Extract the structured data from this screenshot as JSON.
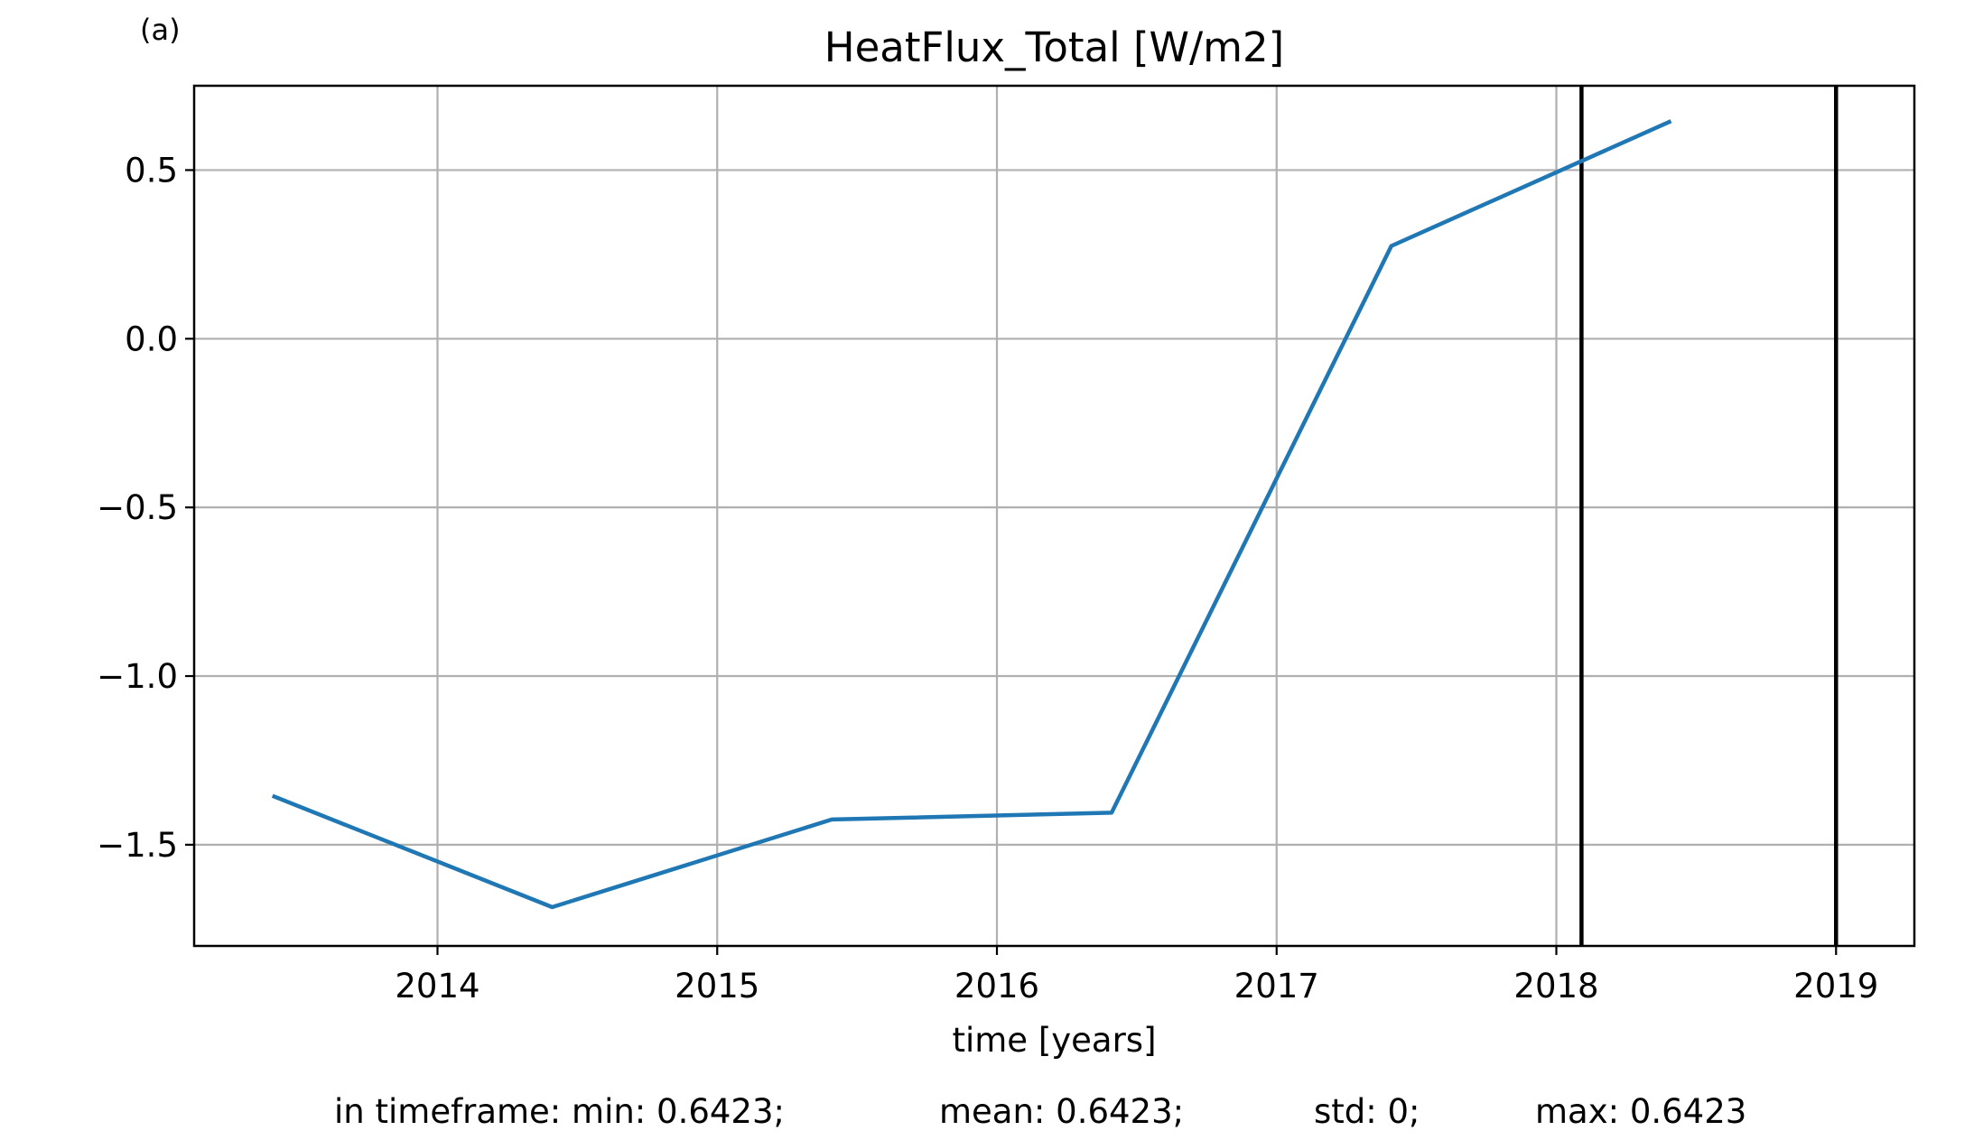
{
  "panel_label": "(a)",
  "chart_data": {
    "type": "line",
    "title": "HeatFlux_Total [W/m2]",
    "xlabel": "time [years]",
    "ylabel": "",
    "xlim": [
      2013.13,
      2019.28
    ],
    "ylim": [
      -1.8,
      0.75
    ],
    "x_ticks": [
      2014,
      2015,
      2016,
      2017,
      2018,
      2019
    ],
    "x_tick_labels": [
      "2014",
      "2015",
      "2016",
      "2017",
      "2018",
      "2019"
    ],
    "y_ticks": [
      0.5,
      0.0,
      -0.5,
      -1.0,
      -1.5
    ],
    "y_tick_labels": [
      "0.5",
      "0.0",
      "−0.5",
      "−1.0",
      "−1.5"
    ],
    "grid": true,
    "series": [
      {
        "color": "#1f77b4",
        "x": [
          2013.41,
          2014.41,
          2015.41,
          2016.41,
          2017.41,
          2018.41
        ],
        "y": [
          -1.355,
          -1.685,
          -1.425,
          -1.405,
          0.275,
          0.645
        ]
      }
    ],
    "vertical_lines": [
      {
        "x": 2018.09,
        "color": "#000000"
      },
      {
        "x": 2019.0,
        "color": "#000000"
      }
    ]
  },
  "stats": {
    "min": "in timeframe: min: 0.6423;",
    "mean": "mean: 0.6423;",
    "std": "std: 0;",
    "max": "max: 0.6423"
  }
}
